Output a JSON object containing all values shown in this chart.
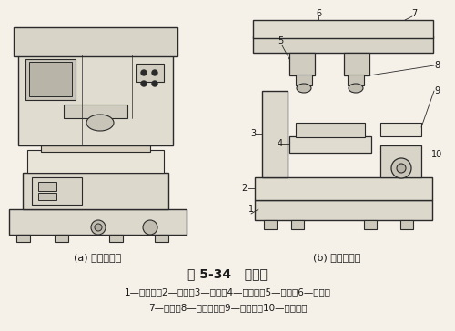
{
  "title": "图 5-34   移印机",
  "subtitle_a": "(a) 移印机外观",
  "subtitle_b": "(b) 移印机结构",
  "caption_line1": "1—角铁架；2—底座；3—立柱；4—印版台；5—刮刀；6—横梁；",
  "caption_line2": "7—导轨；8—硅胶印头；9—承印物；10—升降机构",
  "bg_color": "#f5f0e8",
  "line_color": "#2a2a2a",
  "text_color": "#1a1a1a",
  "fig_width": 5.0,
  "fig_height": 3.64,
  "dpi": 100
}
